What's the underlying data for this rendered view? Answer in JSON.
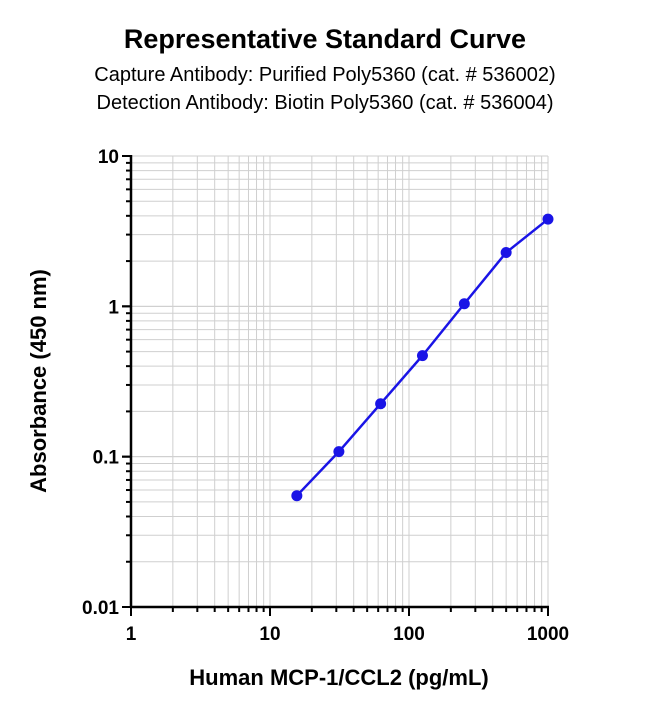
{
  "chart_data": {
    "type": "line",
    "title": "Representative Standard Curve",
    "subtitles": [
      "Capture Antibody: Purified Poly5360 (cat. # 536002)",
      "Detection Antibody: Biotin Poly5360 (cat. # 536004)"
    ],
    "xlabel": "Human MCP-1/CCL2 (pg/mL)",
    "ylabel": "Absorbance (450 nm)",
    "xscale": "log",
    "yscale": "log",
    "xlim": [
      1,
      1000
    ],
    "ylim": [
      0.01,
      10
    ],
    "xticks": [
      1,
      10,
      100,
      1000
    ],
    "xtick_labels": [
      "1",
      "10",
      "100",
      "1000"
    ],
    "yticks": [
      0.01,
      0.1,
      1,
      10
    ],
    "ytick_labels": [
      "0.01",
      "0.1",
      "1",
      "10"
    ],
    "grid": true,
    "series": [
      {
        "color": "#1a14e6",
        "x": [
          15.6,
          31.3,
          62.5,
          125,
          250,
          500,
          1000
        ],
        "y": [
          0.055,
          0.108,
          0.225,
          0.47,
          1.04,
          2.28,
          3.8
        ]
      }
    ]
  }
}
